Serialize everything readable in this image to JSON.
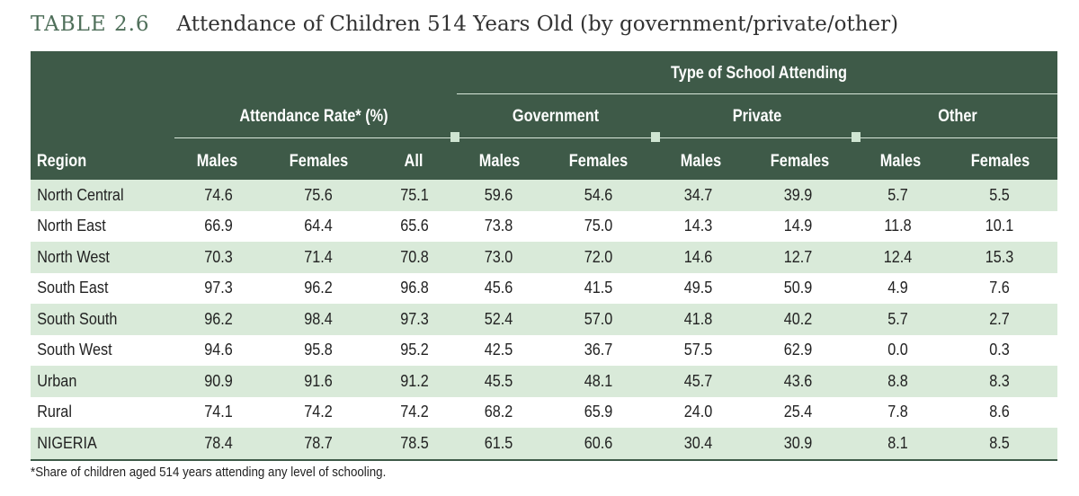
{
  "title": {
    "label": "TABLE 2.6",
    "text": "Attendance of Children 514 Years Old (by government/private/other)"
  },
  "header": {
    "type_of_school": "Type of School Attending",
    "attendance_rate": "Attendance Rate* (%)",
    "government": "Government",
    "private": "Private",
    "other": "Other",
    "columns": [
      "Region",
      "Males",
      "Females",
      "All",
      "Males",
      "Females",
      "Males",
      "Females",
      "Males",
      "Females"
    ]
  },
  "rows": [
    [
      "North Central",
      "74.6",
      "75.6",
      "75.1",
      "59.6",
      "54.6",
      "34.7",
      "39.9",
      "5.7",
      "5.5"
    ],
    [
      "North East",
      "66.9",
      "64.4",
      "65.6",
      "73.8",
      "75.0",
      "14.3",
      "14.9",
      "11.8",
      "10.1"
    ],
    [
      "North West",
      "70.3",
      "71.4",
      "70.8",
      "73.0",
      "72.0",
      "14.6",
      "12.7",
      "12.4",
      "15.3"
    ],
    [
      "South East",
      "97.3",
      "96.2",
      "96.8",
      "45.6",
      "41.5",
      "49.5",
      "50.9",
      "4.9",
      "7.6"
    ],
    [
      "South South",
      "96.2",
      "98.4",
      "97.3",
      "52.4",
      "57.0",
      "41.8",
      "40.2",
      "5.7",
      "2.7"
    ],
    [
      "South West",
      "94.6",
      "95.8",
      "95.2",
      "42.5",
      "36.7",
      "57.5",
      "62.9",
      "0.0",
      "0.3"
    ],
    [
      "Urban",
      "90.9",
      "91.6",
      "91.2",
      "45.5",
      "48.1",
      "45.7",
      "43.6",
      "8.8",
      "8.3"
    ],
    [
      "Rural",
      "74.1",
      "74.2",
      "74.2",
      "68.2",
      "65.9",
      "24.0",
      "25.4",
      "7.8",
      "8.6"
    ],
    [
      "NIGERIA",
      "78.4",
      "78.7",
      "78.5",
      "61.5",
      "60.6",
      "30.4",
      "30.9",
      "8.1",
      "8.5"
    ]
  ],
  "footnote": "*Share of children aged 514 years attending any level of schooling.",
  "colors": {
    "header_bg": "#3e5a48",
    "shade_row": "#d9ead9"
  }
}
